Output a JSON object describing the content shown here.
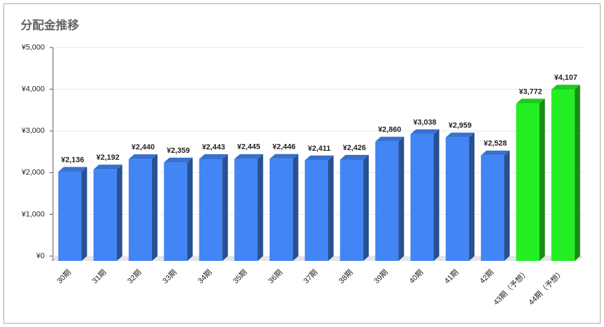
{
  "chart_data": {
    "type": "bar3d",
    "title": "分配金推移",
    "categories": [
      "30期",
      "31期",
      "32期",
      "33期",
      "34期",
      "35期",
      "36期",
      "37期",
      "38期",
      "39期",
      "40期",
      "41期",
      "42期",
      "43期（予想）",
      "44期（予想）"
    ],
    "values": [
      2136,
      2192,
      2440,
      2359,
      2443,
      2445,
      2446,
      2411,
      2426,
      2860,
      3038,
      2959,
      2528,
      3772,
      4107
    ],
    "value_labels": [
      "¥2,136",
      "¥2,192",
      "¥2,440",
      "¥2,359",
      "¥2,443",
      "¥2,445",
      "¥2,446",
      "¥2,411",
      "¥2,426",
      "¥2,860",
      "¥3,038",
      "¥2,959",
      "¥2,528",
      "¥3,772",
      "¥4,107"
    ],
    "colors": [
      "#4285f4",
      "#4285f4",
      "#4285f4",
      "#4285f4",
      "#4285f4",
      "#4285f4",
      "#4285f4",
      "#4285f4",
      "#4285f4",
      "#4285f4",
      "#4285f4",
      "#4285f4",
      "#4285f4",
      "#22ee22",
      "#22ee22"
    ],
    "ylim": [
      0,
      5000
    ],
    "yticks": [
      {
        "value": 0,
        "label": "¥0"
      },
      {
        "value": 1000,
        "label": "¥1,000"
      },
      {
        "value": 2000,
        "label": "¥2,000"
      },
      {
        "value": 3000,
        "label": "¥3,000"
      },
      {
        "value": 4000,
        "label": "¥4,000"
      },
      {
        "value": 5000,
        "label": "¥5,000"
      }
    ],
    "grid": true
  }
}
